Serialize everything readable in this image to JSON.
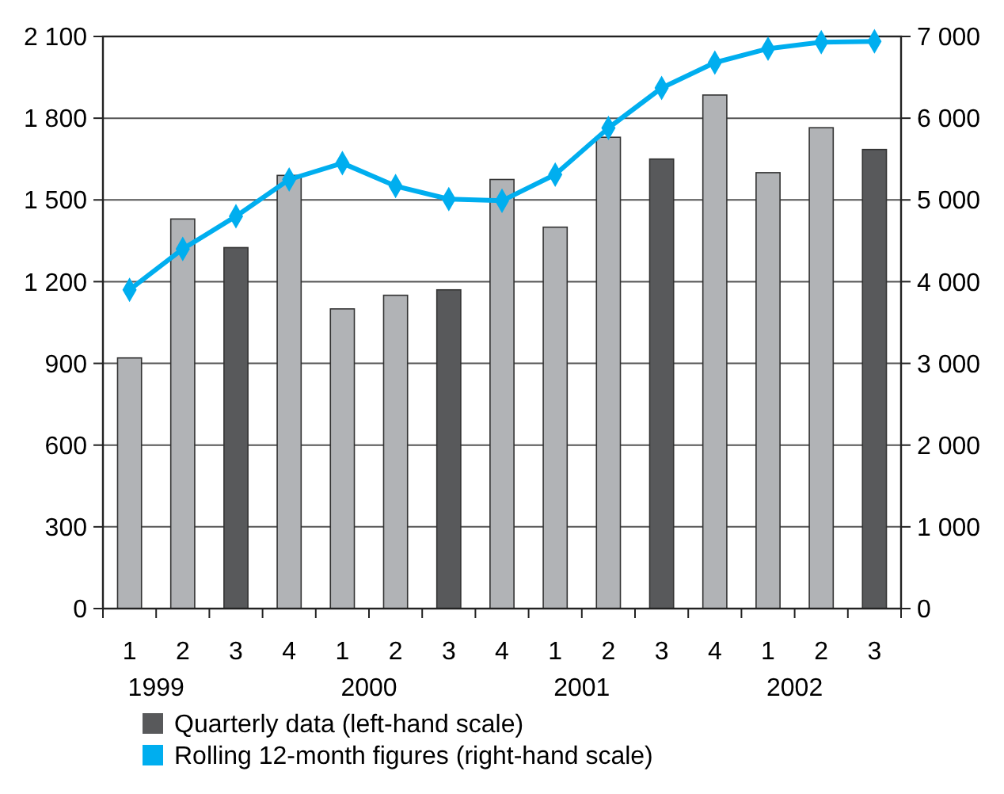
{
  "chart_data": {
    "type": "bar",
    "categories": [
      "1",
      "2",
      "3",
      "4",
      "1",
      "2",
      "3",
      "4",
      "1",
      "2",
      "3",
      "4",
      "1",
      "2",
      "3"
    ],
    "annotations": [
      "1999",
      "2000",
      "2001",
      "2002"
    ],
    "series": [
      {
        "name": "Quarterly data (left-hand scale)",
        "color": "#58595b",
        "colors": [
          "#b1b3b6",
          "#b1b3b6",
          "#58595b",
          "#b1b3b6",
          "#b1b3b6",
          "#b1b3b6",
          "#58595b",
          "#b1b3b6",
          "#b1b3b6",
          "#b1b3b6",
          "#58595b",
          "#b1b3b6",
          "#b1b3b6",
          "#b1b3b6",
          "#58595b"
        ],
        "values": [
          920,
          1430,
          1325,
          1590,
          1100,
          1150,
          1170,
          1575,
          1400,
          1730,
          1650,
          1885,
          1600,
          1765,
          1685
        ]
      },
      {
        "name": "Rolling 12-month figures (right-hand scale)",
        "type": "line",
        "axis": "y2",
        "color": "#00aeef",
        "marker": "diamond",
        "values": [
          3900,
          4400,
          4800,
          5250,
          5450,
          5170,
          5010,
          4990,
          5310,
          5880,
          6370,
          6680,
          6850,
          6930,
          6940
        ]
      }
    ],
    "ylim": [
      0,
      2100
    ],
    "yticks": [
      0,
      300,
      600,
      900,
      {
        "value": 1200,
        "label": "1 200"
      },
      {
        "value": 1500,
        "label": "1 500"
      },
      {
        "value": 1800,
        "label": "1 800"
      },
      {
        "value": 2100,
        "label": "2 100"
      }
    ],
    "y2lim": [
      0,
      7000
    ],
    "y2ticks": [
      0,
      {
        "value": 1000,
        "label": "1 000"
      },
      {
        "value": 2000,
        "label": "2 000"
      },
      {
        "value": 3000,
        "label": "3 000"
      },
      {
        "value": 4000,
        "label": "4 000"
      },
      {
        "value": 5000,
        "label": "5 000"
      },
      {
        "value": 6000,
        "label": "6 000"
      },
      {
        "value": 7000,
        "label": "7 000"
      }
    ],
    "grid": "y",
    "legend": "bottom"
  }
}
